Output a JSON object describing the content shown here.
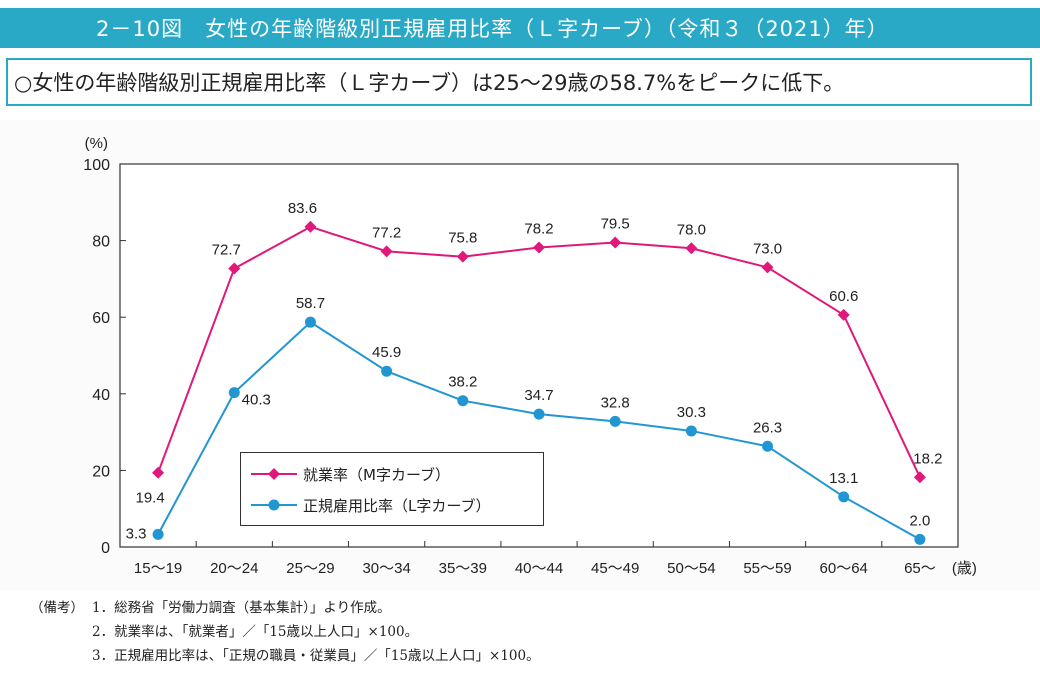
{
  "title": "2－10図　女性の年齢階級別正規雇用比率（Ｌ字カーブ）（令和３（2021）年）",
  "summary": "○女性の年齢階級別正規雇用比率（Ｌ字カーブ）は25～29歳の58.7%をピークに低下。",
  "colors": {
    "accent": "#29a9c6",
    "series1": "#e0187a",
    "series2": "#2196d3"
  },
  "chart_data": {
    "type": "line",
    "ylabel": "(%)",
    "xunit": "(歳)",
    "ylim": [
      0,
      100
    ],
    "yticks": [
      0,
      20,
      40,
      60,
      80,
      100
    ],
    "categories": [
      "15～19",
      "20～24",
      "25～29",
      "30～34",
      "35～39",
      "40～44",
      "45～49",
      "50～54",
      "55～59",
      "60～64",
      "65～"
    ],
    "series": [
      {
        "name": "就業率（M字カーブ）",
        "color": "#e0187a",
        "marker": "diamond",
        "values": [
          19.4,
          72.7,
          83.6,
          77.2,
          75.8,
          78.2,
          79.5,
          78.0,
          73.0,
          60.6,
          18.2
        ]
      },
      {
        "name": "正規雇用比率（L字カーブ）",
        "color": "#2196d3",
        "marker": "circle",
        "values": [
          3.3,
          40.3,
          58.7,
          45.9,
          38.2,
          34.7,
          32.8,
          30.3,
          26.3,
          13.1,
          2.0
        ]
      }
    ],
    "grid": false,
    "legend": "bottom-left"
  },
  "notes": {
    "prefix": "（備考）",
    "items": [
      "1．総務省「労働力調査（基本集計）」より作成。",
      "2．就業率は、「就業者」／「15歳以上人口」×100。",
      "3．正規雇用比率は、「正規の職員・従業員」／「15歳以上人口」×100。"
    ]
  }
}
